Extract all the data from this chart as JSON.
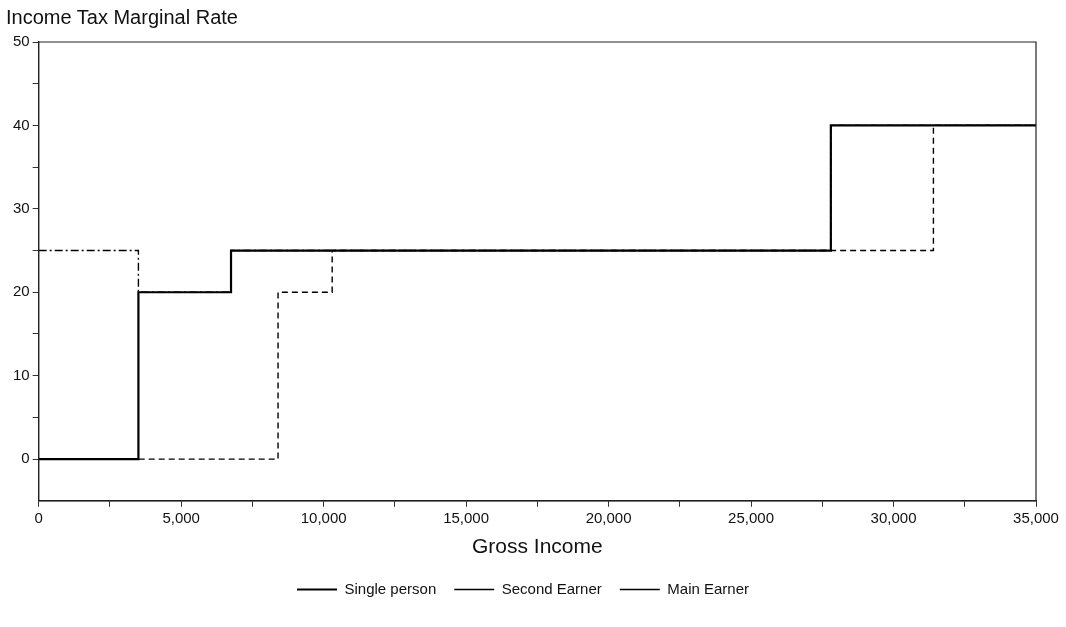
{
  "chart_data": {
    "type": "step",
    "title": "Income Tax Marginal Rate",
    "xlabel": "Gross Income",
    "xlim": [
      0,
      35000
    ],
    "xticks": [
      0,
      {
        "value": 2500,
        "label": null
      },
      {
        "value": 5000,
        "label": "5,000"
      },
      {
        "value": 7500,
        "label": null
      },
      {
        "value": 10000,
        "label": "10,000"
      },
      {
        "value": 12500,
        "label": null
      },
      {
        "value": 15000,
        "label": "15,000"
      },
      {
        "value": 17500,
        "label": null
      },
      {
        "value": 20000,
        "label": "20,000"
      },
      {
        "value": 22500,
        "label": null
      },
      {
        "value": 25000,
        "label": "25,000"
      },
      {
        "value": 27500,
        "label": null
      },
      {
        "value": 30000,
        "label": "30,000"
      },
      {
        "value": 32500,
        "label": null
      },
      {
        "value": 35000,
        "label": "35,000"
      }
    ],
    "ylim": [
      -5,
      50
    ],
    "yticks": [
      0,
      {
        "value": 5,
        "label": null
      },
      10,
      {
        "value": 15,
        "label": null
      },
      20,
      {
        "value": 25,
        "label": null
      },
      30,
      {
        "value": 35,
        "label": null
      },
      40,
      {
        "value": 45,
        "label": null
      },
      50
    ],
    "grid": false,
    "legend": "bottom",
    "marker": "none",
    "series": [
      {
        "name": "Single person",
        "color": "#000000",
        "line_style": "solid",
        "x": [
          0,
          3500,
          6750,
          27800,
          35000
        ],
        "values": [
          0,
          20,
          25,
          40,
          40
        ]
      },
      {
        "name": "Second Earner",
        "color": "#000000",
        "line_style": "dashdot",
        "x": [
          0,
          3500,
          6750,
          27800,
          35000
        ],
        "values": [
          25,
          20,
          25,
          40,
          40
        ]
      },
      {
        "name": "Main Earner",
        "color": "#000000",
        "line_style": "dashed",
        "x": [
          0,
          8400,
          10300,
          31400,
          35000
        ],
        "values": [
          0,
          20,
          25,
          40,
          40
        ]
      }
    ]
  }
}
